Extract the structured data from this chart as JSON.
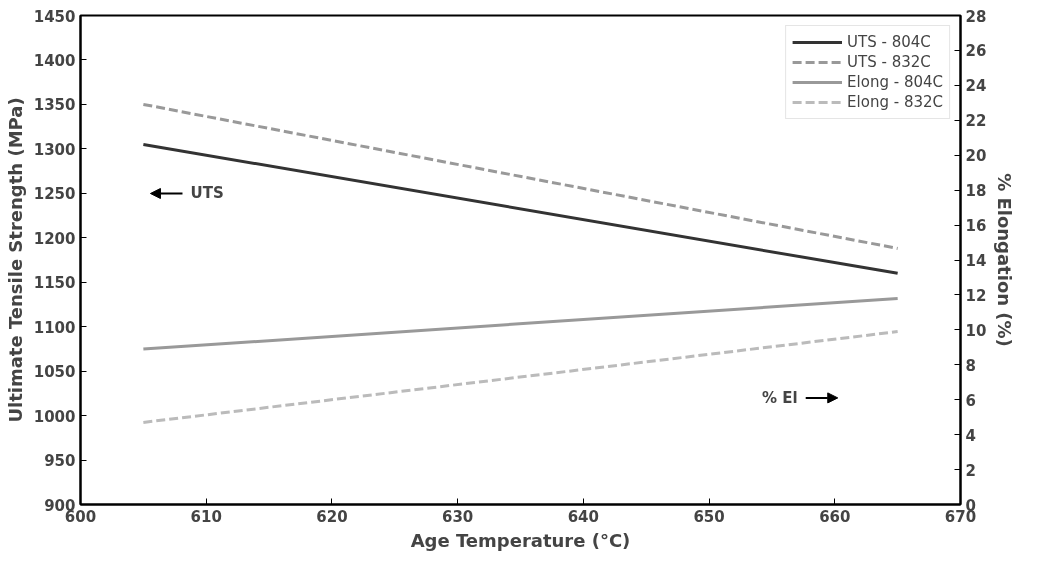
{
  "chart_data": {
    "type": "line",
    "xlabel": "Age Temperature (°C)",
    "ylabel": "Ultimate Tensile Strength (MPa)",
    "y2label": "% Elongation (%)",
    "xlim": [
      600,
      670
    ],
    "xticks": [
      600,
      610,
      620,
      630,
      640,
      650,
      660,
      670
    ],
    "ylim": [
      900,
      1450
    ],
    "yticks": [
      900,
      950,
      1000,
      1050,
      1100,
      1150,
      1200,
      1250,
      1300,
      1350,
      1400,
      1450
    ],
    "y2lim": [
      0,
      28
    ],
    "y2ticks": [
      0,
      2,
      4,
      6,
      8,
      10,
      12,
      14,
      16,
      18,
      20,
      22,
      24,
      26,
      28
    ],
    "x": [
      605,
      665
    ],
    "series": [
      {
        "name": "UTS - 804C",
        "color": "#333333",
        "values": [
          1305,
          1160
        ],
        "line_style": "solid"
      },
      {
        "name": "UTS - 832C",
        "color": "#999999",
        "values": [
          1350,
          1188
        ],
        "line_style": "dashed"
      },
      {
        "name": "Elong - 804C",
        "color": "#999999",
        "values": [
          8.9,
          11.8
        ],
        "line_style": "solid",
        "axis": "y2"
      },
      {
        "name": "Elong - 832C",
        "color": "#bbbbbb",
        "values": [
          4.7,
          9.9
        ],
        "line_style": "dashed",
        "axis": "y2"
      }
    ],
    "annotations": [
      "UTS",
      "% El"
    ],
    "legend": "top right",
    "grid": false
  }
}
